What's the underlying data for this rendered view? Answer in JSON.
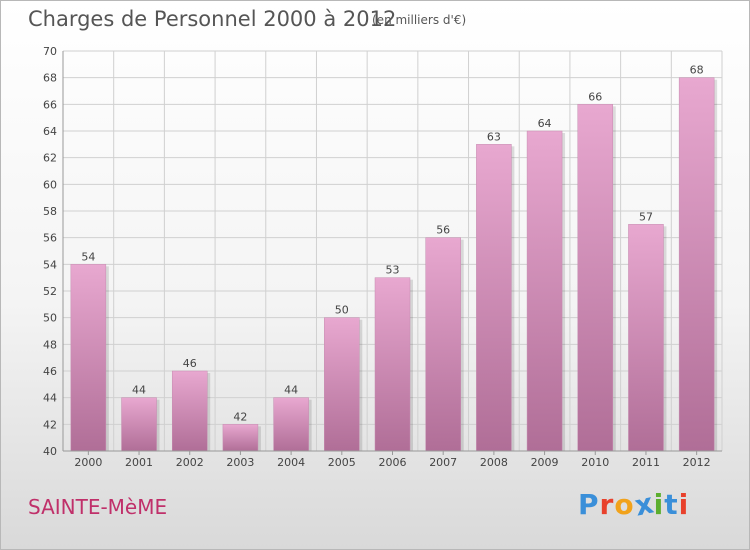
{
  "header": {
    "title": "Charges de Personnel 2000 à 2012",
    "subtitle": "(en milliers d'€)"
  },
  "footer": {
    "location": "SAINTE-MèME",
    "brand": "Proxiti",
    "brand_colors": [
      "#3a8fd9",
      "#e8412c",
      "#f1a21b",
      "#3a8fd9",
      "#5cae2e",
      "#3a8fd9",
      "#e8412c"
    ]
  },
  "colors": {
    "bar_top": "#e8a8d0",
    "bar_bottom": "#b06e97",
    "grid": "#d0d0d0",
    "axis_text": "#444444"
  },
  "chart_data": {
    "type": "bar",
    "title": "Charges de Personnel 2000 à 2012",
    "subtitle": "(en milliers d'€)",
    "categories": [
      "2000",
      "2001",
      "2002",
      "2003",
      "2004",
      "2005",
      "2006",
      "2007",
      "2008",
      "2009",
      "2010",
      "2011",
      "2012"
    ],
    "values": [
      54,
      44,
      46,
      42,
      44,
      50,
      53,
      56,
      63,
      64,
      66,
      57,
      68
    ],
    "ylim": [
      40,
      70
    ],
    "yticks": [
      40,
      42,
      44,
      46,
      48,
      50,
      52,
      54,
      56,
      58,
      60,
      62,
      64,
      66,
      68,
      70
    ],
    "grid": true,
    "data_labels": true
  }
}
